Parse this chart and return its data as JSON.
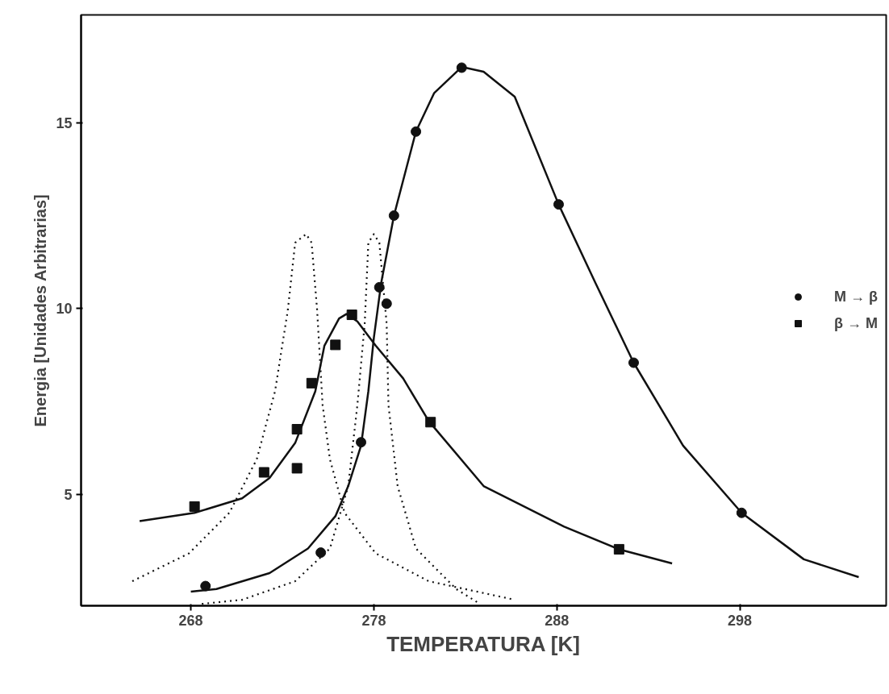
{
  "chart_data": {
    "type": "line",
    "xlabel": "TEMPERATURA [K]",
    "ylabel": "Energia [Unidades Arbitrarias]",
    "xlim": [
      262,
      306
    ],
    "ylim": [
      2.0,
      17.9
    ],
    "xticks": [
      268,
      278,
      288,
      298
    ],
    "yticks": [
      5,
      10,
      15
    ],
    "grid": false,
    "legend": "right",
    "series": [
      {
        "name": "M → β",
        "type": "scatter",
        "marker": "circle",
        "color": "#111111",
        "x": [
          268.8,
          275.1,
          277.3,
          278.3,
          278.7,
          279.1,
          280.3,
          282.8,
          288.1,
          292.2,
          298.1
        ],
        "values": [
          2.53,
          3.43,
          6.4,
          10.57,
          10.13,
          12.5,
          14.76,
          16.48,
          12.8,
          8.54,
          4.5
        ]
      },
      {
        "name": "β → M",
        "type": "scatter",
        "marker": "square",
        "color": "#111111",
        "x": [
          268.2,
          272.0,
          273.8,
          273.8,
          274.6,
          275.9,
          276.8,
          281.1,
          291.4
        ],
        "values": [
          4.67,
          5.59,
          5.7,
          6.75,
          7.99,
          9.02,
          9.83,
          6.94,
          3.52
        ]
      },
      {
        "line_style": "solid",
        "marker": "none",
        "color": "#111111",
        "x": [
          268.0,
          269.4,
          272.3,
          274.4,
          275.9,
          276.6,
          277.3,
          277.7,
          278.0,
          278.4,
          279.1,
          280.3,
          281.3,
          282.8,
          284.0,
          285.7,
          288.1,
          290.1,
          292.2,
          294.9,
          298.1,
          301.5,
          304.5
        ],
        "values": [
          2.38,
          2.45,
          2.88,
          3.54,
          4.41,
          5.22,
          6.31,
          7.77,
          9.21,
          10.68,
          12.5,
          14.76,
          15.8,
          16.5,
          16.37,
          15.7,
          12.8,
          10.7,
          8.54,
          6.31,
          4.5,
          3.25,
          2.77
        ]
      },
      {
        "line_style": "solid",
        "marker": "none",
        "color": "#111111",
        "x": [
          265.2,
          268.2,
          270.8,
          272.3,
          273.7,
          274.8,
          275.3,
          276.1,
          276.5,
          277.1,
          278.1,
          279.6,
          281.0,
          284.0,
          288.4,
          291.4,
          294.3
        ],
        "values": [
          4.28,
          4.5,
          4.89,
          5.44,
          6.38,
          7.77,
          9.0,
          9.73,
          9.85,
          9.65,
          9.0,
          8.12,
          6.97,
          5.22,
          4.13,
          3.52,
          3.14
        ]
      },
      {
        "line_style": "dotted",
        "marker": "none",
        "color": "#111111",
        "x": [
          264.8,
          267.9,
          270.1,
          271.6,
          272.6,
          273.3,
          273.7,
          274.3,
          274.6,
          274.9,
          275.2,
          275.6,
          276.4,
          278.1,
          281.0,
          285.7
        ],
        "values": [
          2.66,
          3.41,
          4.5,
          5.94,
          7.77,
          9.96,
          11.77,
          12.0,
          11.77,
          9.96,
          7.4,
          5.94,
          4.5,
          3.41,
          2.66,
          2.16
        ]
      },
      {
        "line_style": "dotted",
        "marker": "none",
        "color": "#111111",
        "x": [
          268.6,
          270.8,
          273.7,
          275.6,
          276.6,
          277.1,
          277.5,
          277.7,
          278.0,
          278.3,
          278.7,
          278.8,
          279.3,
          280.3,
          282.5,
          283.8
        ],
        "values": [
          2.05,
          2.16,
          2.66,
          3.54,
          5.22,
          7.4,
          9.59,
          11.77,
          12.0,
          11.77,
          9.59,
          7.4,
          5.22,
          3.54,
          2.45,
          2.05
        ]
      }
    ]
  }
}
